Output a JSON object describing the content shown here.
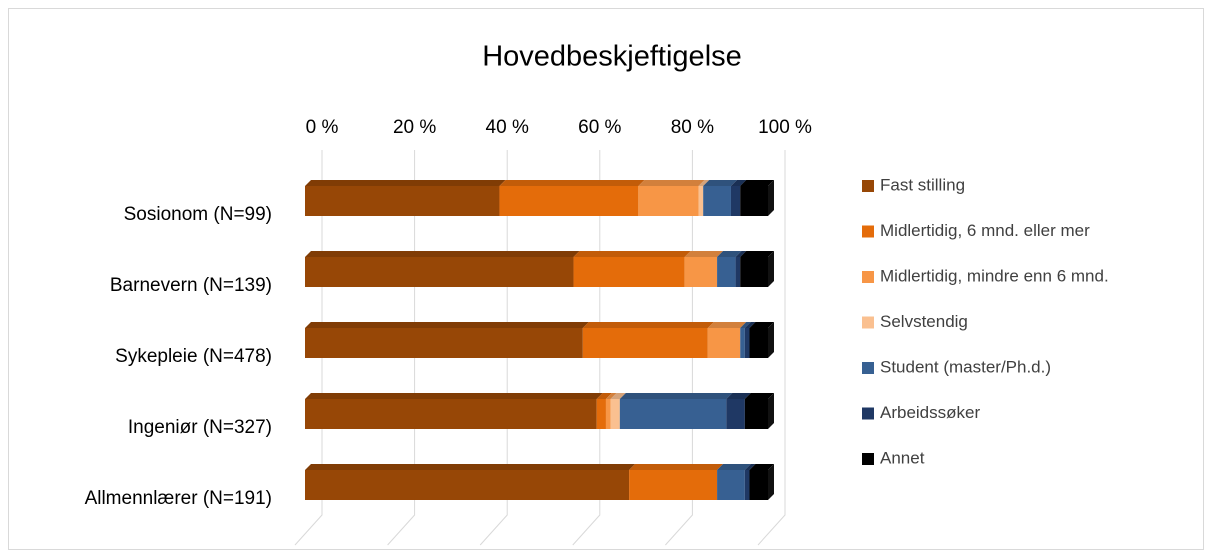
{
  "chart_data": {
    "type": "bar",
    "orientation": "horizontal",
    "stacked": true,
    "title": "Hovedbeskjeftigelse",
    "categories": [
      "Sosionom (N=99)",
      "Barnevern (N=139)",
      "Sykepleie (N=478)",
      "Ingeniør (N=327)",
      "Allmennlærer (N=191)"
    ],
    "series": [
      {
        "name": "Fast stilling",
        "color": "#974706",
        "values": [
          42,
          58,
          60,
          63,
          70
        ]
      },
      {
        "name": "Midlertidig, 6 mnd. eller mer",
        "color": "#e46c0a",
        "values": [
          30,
          24,
          27,
          2,
          19
        ]
      },
      {
        "name": "Midlertidig, mindre enn 6 mnd.",
        "color": "#f79646",
        "values": [
          13,
          7,
          7,
          1,
          0
        ]
      },
      {
        "name": "Selvstendig",
        "color": "#fac090",
        "values": [
          1,
          0,
          0,
          2,
          0
        ]
      },
      {
        "name": "Student (master/Ph.d.)",
        "color": "#376092",
        "values": [
          6,
          4,
          1,
          23,
          6
        ]
      },
      {
        "name": "Arbeidssøker",
        "color": "#1f3864",
        "values": [
          2,
          1,
          1,
          4,
          1
        ]
      },
      {
        "name": "Annet",
        "color": "#000000",
        "values": [
          6,
          6,
          4,
          5,
          4
        ]
      }
    ],
    "xlim": [
      0,
      100
    ],
    "xticks": [
      {
        "value": 0,
        "label": "0 %"
      },
      {
        "value": 20,
        "label": "20 %"
      },
      {
        "value": 40,
        "label": "40 %"
      },
      {
        "value": 60,
        "label": "60 %"
      },
      {
        "value": 80,
        "label": "80 %"
      },
      {
        "value": 100,
        "label": "100 %"
      }
    ],
    "grid": true,
    "legend": "right"
  }
}
